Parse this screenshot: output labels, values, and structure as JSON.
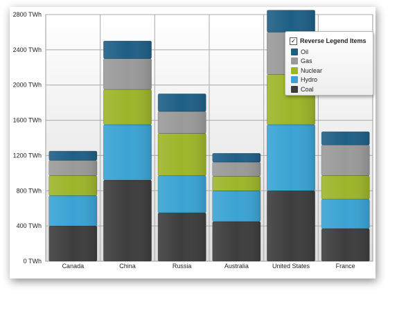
{
  "chart_data": {
    "type": "bar",
    "stacked": true,
    "categories": [
      "Canada",
      "China",
      "Russia",
      "Australia",
      "United States",
      "France"
    ],
    "series": [
      {
        "name": "Coal",
        "color": "#3d3d3d",
        "values": [
          400,
          920,
          550,
          450,
          800,
          370
        ]
      },
      {
        "name": "Hydro",
        "color": "#3aa3d4",
        "values": [
          345,
          630,
          420,
          350,
          750,
          335
        ]
      },
      {
        "name": "Nuclear",
        "color": "#9db52a",
        "values": [
          225,
          400,
          480,
          165,
          570,
          265
        ]
      },
      {
        "name": "Gas",
        "color": "#9a9a9a",
        "values": [
          175,
          350,
          250,
          160,
          480,
          350
        ]
      },
      {
        "name": "Oil",
        "color": "#1e5f86",
        "values": [
          105,
          200,
          200,
          100,
          250,
          150
        ]
      }
    ],
    "y_ticks": [
      "0 TWh",
      "400 TWh",
      "800 TWh",
      "1200 TWh",
      "1600 TWh",
      "2000 TWh",
      "2400 TWh",
      "2800 TWh"
    ],
    "ylim": [
      0,
      2800
    ],
    "grid": true,
    "legend_position": "top-right"
  },
  "legend": {
    "title": "Reverse Legend Items",
    "checked": true,
    "check_mark": "✓",
    "items": [
      {
        "label": "Oil",
        "color": "#1e5f86"
      },
      {
        "label": "Gas",
        "color": "#9a9a9a"
      },
      {
        "label": "Nuclear",
        "color": "#9db52a"
      },
      {
        "label": "Hydro",
        "color": "#3aa3d4"
      },
      {
        "label": "Coal",
        "color": "#3d3d3d"
      }
    ]
  }
}
